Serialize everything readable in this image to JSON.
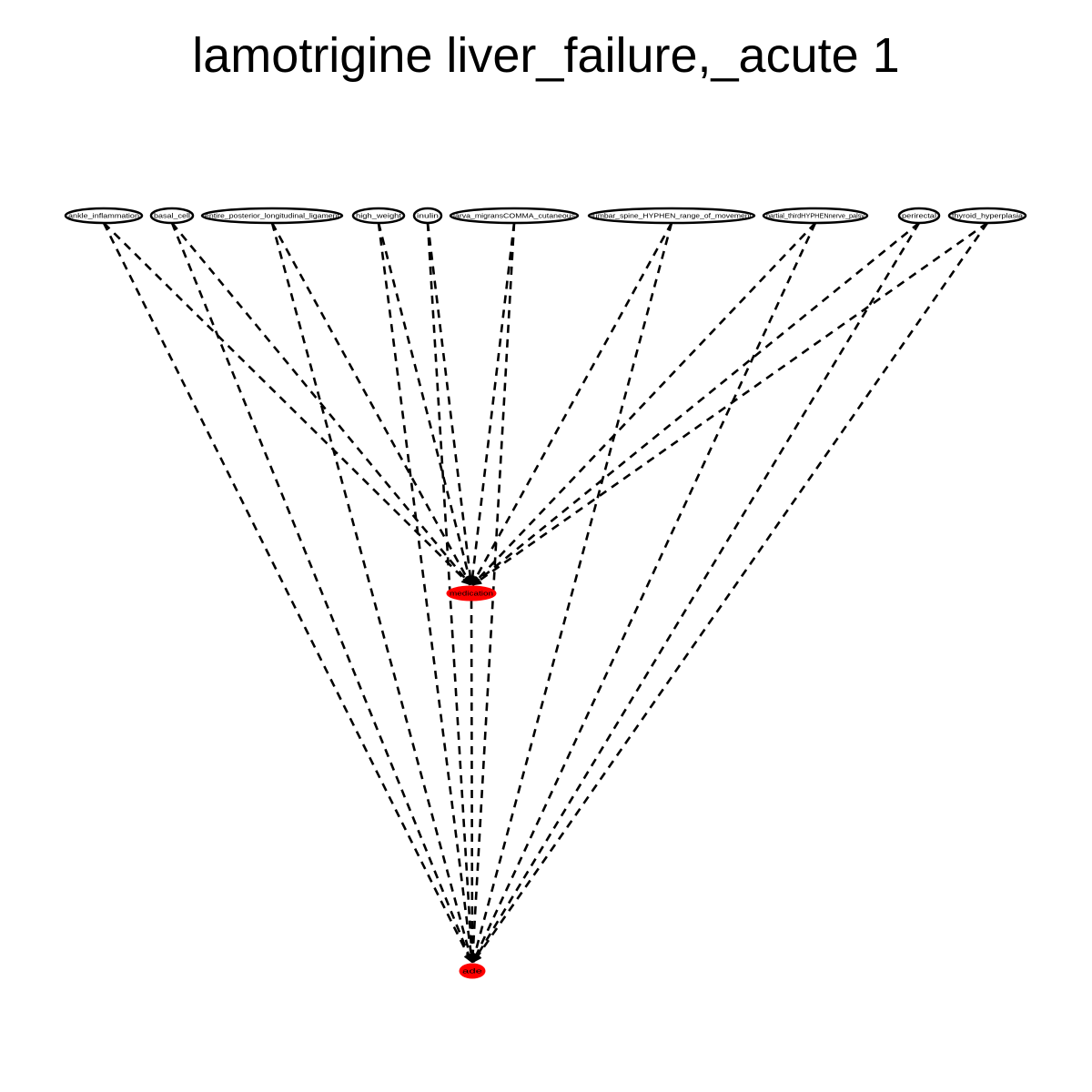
{
  "title": "lamotrigine liver_failure,_acute 1",
  "colors": {
    "highlight": "#ff0000",
    "edge": "#000000",
    "node_border": "#000000"
  },
  "graph": {
    "edge_style": "dashed",
    "source_nodes": [
      "ankle_inflammation",
      "basal_cell",
      "entire_posterior_longitudinal_ligament",
      "high_weight",
      "inulin",
      "larva_migransCOMMA_cutaneous",
      "lumbar_spine_HYPHEN_range_of_movement",
      "partial_thirdHYPHENnerve_palsy",
      "perirectal",
      "thyroid_hyperplasia"
    ],
    "middle_node": "medication",
    "target_node": "ade",
    "edges": [
      [
        "ankle_inflammation",
        "medication"
      ],
      [
        "ankle_inflammation",
        "ade"
      ],
      [
        "basal_cell",
        "medication"
      ],
      [
        "basal_cell",
        "ade"
      ],
      [
        "entire_posterior_longitudinal_ligament",
        "medication"
      ],
      [
        "entire_posterior_longitudinal_ligament",
        "ade"
      ],
      [
        "high_weight",
        "medication"
      ],
      [
        "high_weight",
        "ade"
      ],
      [
        "inulin",
        "medication"
      ],
      [
        "inulin",
        "ade"
      ],
      [
        "larva_migransCOMMA_cutaneous",
        "medication"
      ],
      [
        "larva_migransCOMMA_cutaneous",
        "ade"
      ],
      [
        "lumbar_spine_HYPHEN_range_of_movement",
        "medication"
      ],
      [
        "lumbar_spine_HYPHEN_range_of_movement",
        "ade"
      ],
      [
        "partial_thirdHYPHENnerve_palsy",
        "medication"
      ],
      [
        "partial_thirdHYPHENnerve_palsy",
        "ade"
      ],
      [
        "perirectal",
        "medication"
      ],
      [
        "perirectal",
        "ade"
      ],
      [
        "thyroid_hyperplasia",
        "medication"
      ],
      [
        "thyroid_hyperplasia",
        "ade"
      ],
      [
        "medication",
        "ade"
      ]
    ]
  }
}
